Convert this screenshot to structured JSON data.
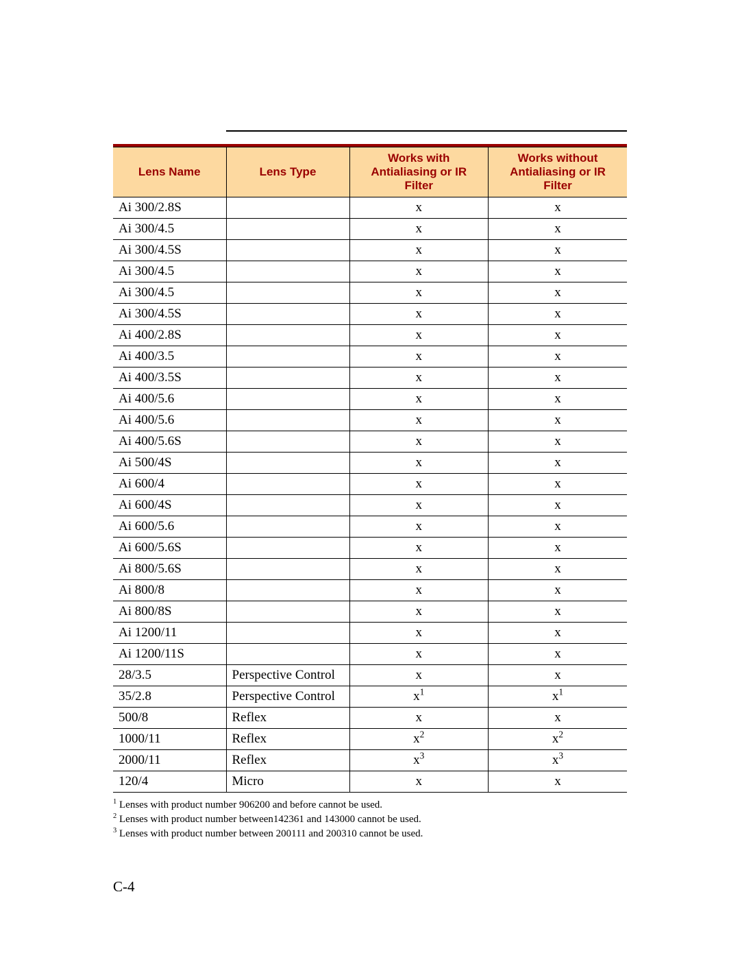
{
  "table": {
    "header": {
      "name": "Lens Name",
      "type": "Lens Type",
      "with": "Works with Antialiasing or IR Filter",
      "without": "Works without Antialiasing or IR Filter"
    },
    "header_bg": "#fdd9a0",
    "header_text_color": "#9a0000",
    "top_border_color": "#9a0000",
    "border_color": "#000000",
    "rows": [
      {
        "name": "Ai 300/2.8S",
        "type": "",
        "with": "x",
        "with_sup": "",
        "without": "x",
        "without_sup": ""
      },
      {
        "name": "Ai 300/4.5",
        "type": "",
        "with": "x",
        "with_sup": "",
        "without": "x",
        "without_sup": ""
      },
      {
        "name": "Ai 300/4.5S",
        "type": "",
        "with": "x",
        "with_sup": "",
        "without": "x",
        "without_sup": ""
      },
      {
        "name": "Ai 300/4.5",
        "type": "",
        "with": "x",
        "with_sup": "",
        "without": "x",
        "without_sup": ""
      },
      {
        "name": "Ai 300/4.5",
        "type": "",
        "with": "x",
        "with_sup": "",
        "without": "x",
        "without_sup": ""
      },
      {
        "name": "Ai 300/4.5S",
        "type": "",
        "with": "x",
        "with_sup": "",
        "without": "x",
        "without_sup": ""
      },
      {
        "name": "Ai 400/2.8S",
        "type": "",
        "with": "x",
        "with_sup": "",
        "without": "x",
        "without_sup": ""
      },
      {
        "name": "Ai 400/3.5",
        "type": "",
        "with": "x",
        "with_sup": "",
        "without": "x",
        "without_sup": ""
      },
      {
        "name": "Ai 400/3.5S",
        "type": "",
        "with": "x",
        "with_sup": "",
        "without": "x",
        "without_sup": ""
      },
      {
        "name": "Ai 400/5.6",
        "type": "",
        "with": "x",
        "with_sup": "",
        "without": "x",
        "without_sup": ""
      },
      {
        "name": "Ai 400/5.6",
        "type": "",
        "with": "x",
        "with_sup": "",
        "without": "x",
        "without_sup": ""
      },
      {
        "name": "Ai 400/5.6S",
        "type": "",
        "with": "x",
        "with_sup": "",
        "without": "x",
        "without_sup": ""
      },
      {
        "name": "Ai 500/4S",
        "type": "",
        "with": "x",
        "with_sup": "",
        "without": "x",
        "without_sup": ""
      },
      {
        "name": "Ai 600/4",
        "type": "",
        "with": "x",
        "with_sup": "",
        "without": "x",
        "without_sup": ""
      },
      {
        "name": "Ai 600/4S",
        "type": "",
        "with": "x",
        "with_sup": "",
        "without": "x",
        "without_sup": ""
      },
      {
        "name": "Ai 600/5.6",
        "type": "",
        "with": "x",
        "with_sup": "",
        "without": "x",
        "without_sup": ""
      },
      {
        "name": "Ai 600/5.6S",
        "type": "",
        "with": "x",
        "with_sup": "",
        "without": "x",
        "without_sup": ""
      },
      {
        "name": "Ai 800/5.6S",
        "type": "",
        "with": "x",
        "with_sup": "",
        "without": "x",
        "without_sup": ""
      },
      {
        "name": "Ai 800/8",
        "type": "",
        "with": "x",
        "with_sup": "",
        "without": "x",
        "without_sup": ""
      },
      {
        "name": "Ai 800/8S",
        "type": "",
        "with": "x",
        "with_sup": "",
        "without": "x",
        "without_sup": ""
      },
      {
        "name": "Ai 1200/11",
        "type": "",
        "with": "x",
        "with_sup": "",
        "without": "x",
        "without_sup": ""
      },
      {
        "name": "Ai 1200/11S",
        "type": "",
        "with": "x",
        "with_sup": "",
        "without": "x",
        "without_sup": ""
      },
      {
        "name": "28/3.5",
        "type": "Perspective Control",
        "with": "x",
        "with_sup": "",
        "without": "x",
        "without_sup": ""
      },
      {
        "name": "35/2.8",
        "type": "Perspective Control",
        "with": "x",
        "with_sup": "1",
        "without": "x",
        "without_sup": "1"
      },
      {
        "name": "500/8",
        "type": "Reflex",
        "with": "x",
        "with_sup": "",
        "without": "x",
        "without_sup": ""
      },
      {
        "name": "1000/11",
        "type": "Reflex",
        "with": "x",
        "with_sup": "2",
        "without": "x",
        "without_sup": "2"
      },
      {
        "name": "2000/11",
        "type": "Reflex",
        "with": "x",
        "with_sup": "3",
        "without": "x",
        "without_sup": "3"
      },
      {
        "name": "120/4",
        "type": "Micro",
        "with": "x",
        "with_sup": "",
        "without": "x",
        "without_sup": ""
      }
    ]
  },
  "footnotes": {
    "n1_sup": "1",
    "n1_text": " Lenses with product number 906200 and before cannot be used.",
    "n2_sup": "2",
    "n2_text": " Lenses with product number between142361 and 143000 cannot be used.",
    "n3_sup": "3",
    "n3_text": " Lenses with product number between 200111 and 200310 cannot be used."
  },
  "page_number": "C-4"
}
